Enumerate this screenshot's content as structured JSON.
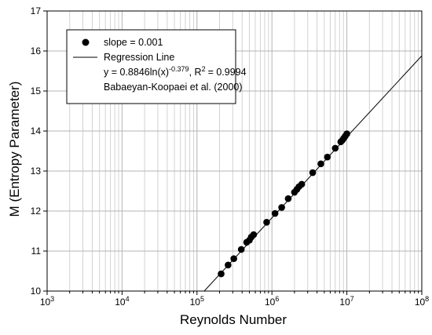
{
  "chart_data": {
    "type": "scatter",
    "xscale": "log",
    "xlim": [
      1000,
      100000000
    ],
    "ylim": [
      10,
      17
    ],
    "grid": true,
    "legend_position": "top-left",
    "xlabel": "Reynolds Number",
    "ylabel": "M (Entropy Parameter)",
    "x_ticks": [
      {
        "base": "10",
        "exp": "3",
        "value": 1000
      },
      {
        "base": "10",
        "exp": "4",
        "value": 10000
      },
      {
        "base": "10",
        "exp": "5",
        "value": 100000
      },
      {
        "base": "10",
        "exp": "6",
        "value": 1000000
      },
      {
        "base": "10",
        "exp": "7",
        "value": 10000000
      },
      {
        "base": "10",
        "exp": "8",
        "value": 100000000
      }
    ],
    "y_ticks": [
      "10",
      "11",
      "12",
      "13",
      "14",
      "15",
      "16",
      "17"
    ],
    "series": [
      {
        "name": "slope = 0.001",
        "kind": "scatter",
        "color": "#000000",
        "points": [
          [
            210000,
            10.43
          ],
          [
            260000,
            10.65
          ],
          [
            310000,
            10.81
          ],
          [
            390000,
            11.04
          ],
          [
            460000,
            11.22
          ],
          [
            500000,
            11.27
          ],
          [
            530000,
            11.35
          ],
          [
            570000,
            11.41
          ],
          [
            850000,
            11.72
          ],
          [
            1100000,
            11.94
          ],
          [
            1350000,
            12.09
          ],
          [
            1650000,
            12.31
          ],
          [
            2000000,
            12.47
          ],
          [
            2150000,
            12.54
          ],
          [
            2300000,
            12.61
          ],
          [
            2500000,
            12.67
          ],
          [
            3500000,
            12.96
          ],
          [
            4500000,
            13.18
          ],
          [
            5500000,
            13.35
          ],
          [
            7000000,
            13.57
          ],
          [
            8300000,
            13.73
          ],
          [
            8700000,
            13.77
          ],
          [
            9100000,
            13.82
          ],
          [
            9500000,
            13.87
          ],
          [
            10000000,
            13.93
          ]
        ]
      },
      {
        "name": "Regression Line",
        "kind": "line",
        "color": "#000000",
        "points": [
          [
            125000,
            10.0
          ],
          [
            100000000,
            15.88
          ]
        ]
      }
    ],
    "legend": {
      "entries": [
        {
          "marker": "dot",
          "label": "slope = 0.001"
        },
        {
          "marker": "line",
          "label": "Regression Line"
        }
      ],
      "equation": {
        "pre": "y = 0.8846ln(x)",
        "sup1": "-0.379",
        "mid": ", R",
        "sup2": "2",
        "post": "= 0.9994"
      },
      "note": "Babaeyan-Koopaei et al. (2000)"
    }
  }
}
